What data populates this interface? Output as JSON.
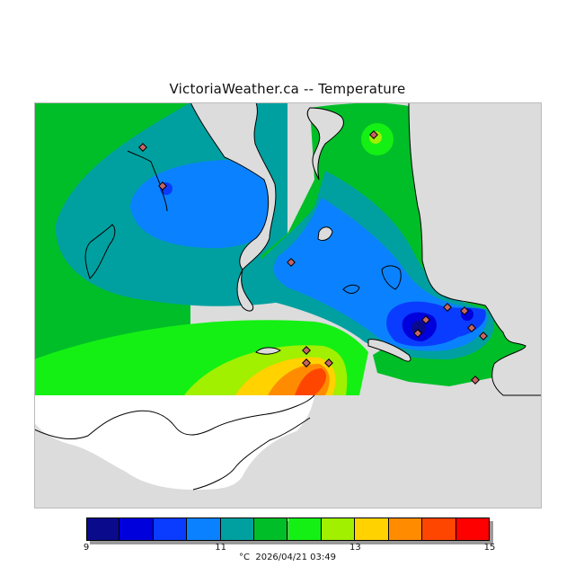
{
  "title": "VictoriaWeather.ca -- Temperature",
  "legend": {
    "unit": "°C",
    "timestamp": "2026/04/21 03:49",
    "min": 9,
    "max": 15,
    "tick_values": [
      "9",
      "11",
      "13",
      "15"
    ],
    "colors": [
      "#0a0a8c",
      "#0000dc",
      "#0a3cff",
      "#0a82ff",
      "#00a0a0",
      "#00be28",
      "#14f014",
      "#a0f000",
      "#ffd200",
      "#ff8c00",
      "#ff4600",
      "#ff0000"
    ]
  },
  "map_colors": {
    "land": "#dcdcdc",
    "no_data": "#ffffff",
    "station_marker": "#c86464"
  }
}
